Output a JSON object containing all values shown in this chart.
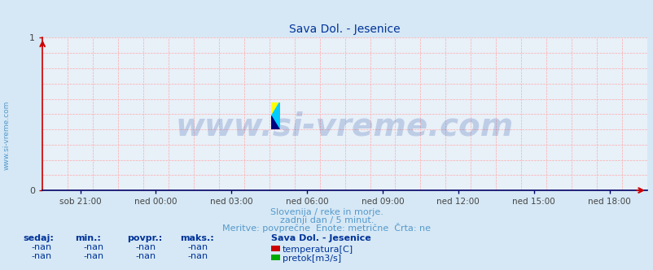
{
  "title": "Sava Dol. - Jesenice",
  "title_color": "#003399",
  "title_fontsize": 10,
  "bg_color": "#d6e8f5",
  "plot_bg_color": "#e8f0f8",
  "grid_color": "#ffaaaa",
  "grid_style": "--",
  "ylim": [
    0,
    1
  ],
  "xlim": [
    0,
    288
  ],
  "xtick_labels": [
    "sob 21:00",
    "ned 00:00",
    "ned 03:00",
    "ned 06:00",
    "ned 09:00",
    "ned 12:00",
    "ned 15:00",
    "ned 18:00"
  ],
  "xtick_positions": [
    18,
    54,
    90,
    126,
    162,
    198,
    234,
    270
  ],
  "axis_color": "#000066",
  "left_axis_color": "#cc0000",
  "bottom_axis_color": "#000066",
  "watermark": "www.si-vreme.com",
  "watermark_color": "#003399",
  "watermark_alpha": 0.18,
  "watermark_fontsize": 28,
  "side_text": "www.si-vreme.com",
  "side_text_color": "#5599cc",
  "side_text_fontsize": 6.5,
  "footer_line1": "Slovenija / reke in morje.",
  "footer_line2": "zadnji dan / 5 minut.",
  "footer_line3": "Meritve: povprečne  Enote: metrične  Črta: ne",
  "footer_color": "#5599cc",
  "footer_fontsize": 8,
  "table_headers": [
    "sedaj:",
    "min.:",
    "povpr.:",
    "maks.:"
  ],
  "table_header_color": "#003399",
  "table_values": [
    "-nan",
    "-nan",
    "-nan",
    "-nan"
  ],
  "table_value_color": "#003399",
  "legend_title": "Sava Dol. - Jesenice",
  "legend_title_color": "#003399",
  "legend_items": [
    "temperatura[C]",
    "pretok[m3/s]"
  ],
  "legend_colors": [
    "#cc0000",
    "#00aa00"
  ],
  "legend_fontsize": 8,
  "logo_yellow": "#ffff00",
  "logo_cyan": "#00ccff",
  "logo_navy": "#000080"
}
